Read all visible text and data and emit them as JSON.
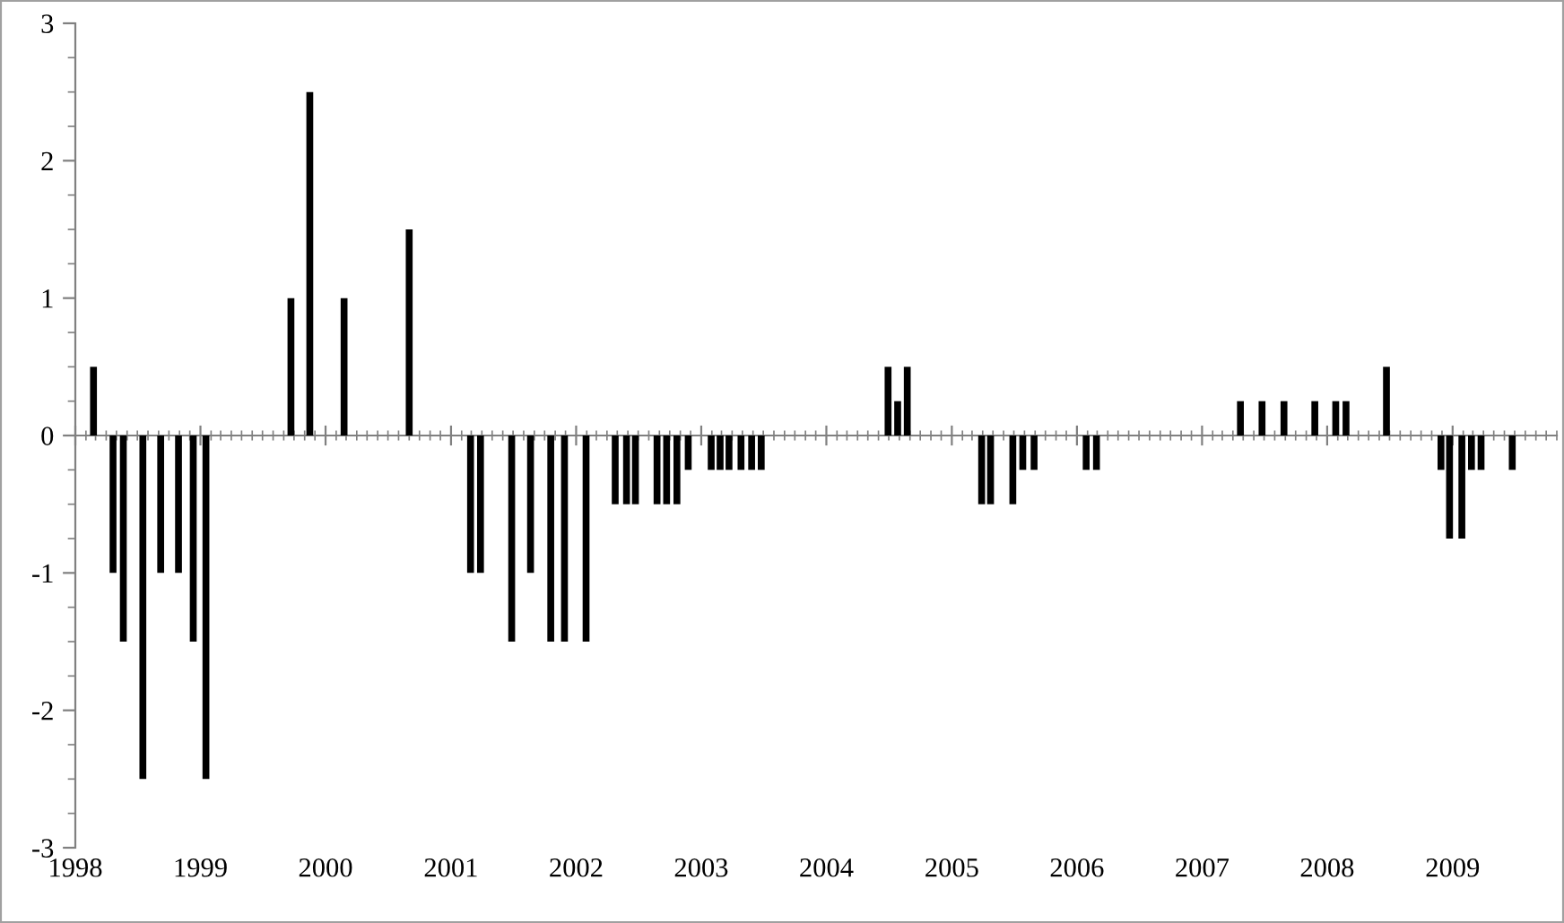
{
  "chart_data": {
    "type": "bar",
    "color": "#000000",
    "x": [
      "1998-02-23",
      "1998-04-21",
      "1998-05-21",
      "1998-07-17",
      "1998-09-07",
      "1998-10-29",
      "1998-12-11",
      "1999-01-17",
      "1999-09-22",
      "1999-11-16",
      "2000-02-24",
      "2000-09-01",
      "2001-02-27",
      "2001-03-28",
      "2001-06-27",
      "2001-08-21",
      "2001-10-19",
      "2001-11-28",
      "2002-01-30",
      "2002-04-25",
      "2002-05-28",
      "2002-06-23",
      "2002-08-25",
      "2002-09-22",
      "2002-10-22",
      "2002-11-24",
      "2003-01-30",
      "2003-02-25",
      "2003-03-23",
      "2003-04-27",
      "2003-05-28",
      "2003-06-25",
      "2004-06-29",
      "2004-07-27",
      "2004-08-24",
      "2005-03-29",
      "2005-04-24",
      "2005-06-28",
      "2005-07-27",
      "2005-08-29",
      "2006-01-28",
      "2006-02-27",
      "2007-04-23",
      "2007-06-25",
      "2007-08-28",
      "2007-11-26",
      "2008-01-26",
      "2008-02-25",
      "2008-06-22",
      "2008-11-28",
      "2008-12-23",
      "2009-01-28",
      "2009-02-25",
      "2009-03-25",
      "2009-06-24"
    ],
    "values": [
      0.5,
      -1,
      -1.5,
      -2.5,
      -1,
      -1,
      -1.5,
      -2.5,
      1,
      2.5,
      1,
      1.5,
      -1,
      -1,
      -1.5,
      -1,
      -1.5,
      -1.5,
      -1.5,
      -0.5,
      -0.5,
      -0.5,
      -0.5,
      -0.5,
      -0.5,
      -0.25,
      -0.25,
      -0.25,
      -0.25,
      -0.25,
      -0.25,
      -0.25,
      0.5,
      0.25,
      0.5,
      -0.5,
      -0.5,
      -0.5,
      -0.25,
      -0.25,
      -0.25,
      -0.25,
      0.25,
      0.25,
      0.25,
      0.25,
      0.25,
      0.25,
      0.5,
      -0.25,
      -0.75,
      -0.75,
      -0.25,
      -0.25,
      -0.25
    ],
    "xlim": [
      "1998-01-01",
      "2009-11-01"
    ],
    "xticks": [
      "1998",
      "1999",
      "2000",
      "2001",
      "2002",
      "2003",
      "2004",
      "2005",
      "2006",
      "2007",
      "2008",
      "2009"
    ],
    "ylim": [
      -3,
      3
    ],
    "yticks": [
      -3,
      -2,
      -1,
      0,
      1,
      2,
      3
    ]
  }
}
